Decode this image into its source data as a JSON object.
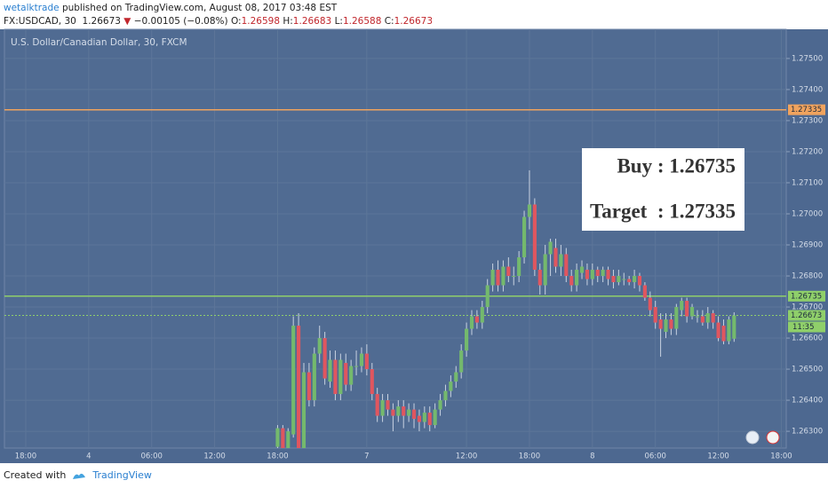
{
  "header": {
    "publisher": "wetalktrade",
    "published": "published on TradingView.com, August 08, 2017 03:48 EST",
    "symbol": "FX:USDCAD, 30",
    "last": "1.26673",
    "arrow": "▼",
    "change": "−0.00105 (−0.08%)",
    "o_label": "O:",
    "o": "1.26598",
    "h_label": "H:",
    "h": "1.26683",
    "l_label": "L:",
    "l": "1.26588",
    "c_label": "C:",
    "c": "1.26673"
  },
  "chart_data": {
    "type": "candlestick",
    "title": "U.S. Dollar/Canadian Dollar, 30, FXCM",
    "categories": [
      null,
      null,
      null,
      null,
      "18:00",
      null,
      null,
      null,
      null,
      null,
      null,
      null,
      null,
      null,
      null,
      null,
      "4",
      null,
      null,
      null,
      null,
      null,
      null,
      null,
      null,
      null,
      null,
      null,
      "06:00",
      null,
      null,
      null,
      null,
      null,
      null,
      null,
      null,
      null,
      null,
      null,
      "12:00",
      null,
      null,
      null,
      null,
      null,
      null,
      null,
      null,
      null,
      null,
      null,
      "18:00",
      null,
      null,
      null,
      null,
      null,
      null,
      null,
      null,
      null,
      null,
      null,
      null,
      null,
      null,
      null,
      null,
      "7",
      null,
      null,
      null,
      null,
      null,
      null,
      null,
      null,
      null,
      null,
      null,
      null,
      null,
      null,
      null,
      null,
      null,
      null,
      "12:00",
      null,
      null,
      null,
      null,
      null,
      null,
      null,
      null,
      null,
      null,
      null,
      "18:00",
      null,
      null,
      null,
      null,
      null,
      null,
      null,
      null,
      null,
      null,
      null,
      "8",
      null,
      null,
      null,
      null,
      null,
      null,
      null,
      null,
      null,
      null,
      null,
      "06:00",
      null,
      null,
      null,
      null,
      null,
      null,
      null,
      null,
      null,
      null,
      null,
      "12:00",
      null,
      null,
      null,
      null,
      null,
      null,
      null,
      null,
      null,
      null,
      null,
      "18:00"
    ],
    "open": [
      null,
      null,
      null,
      null,
      null,
      null,
      null,
      null,
      null,
      null,
      null,
      null,
      null,
      null,
      null,
      null,
      null,
      null,
      null,
      null,
      null,
      null,
      null,
      null,
      null,
      null,
      null,
      null,
      null,
      null,
      null,
      null,
      null,
      null,
      null,
      null,
      null,
      null,
      null,
      null,
      null,
      null,
      null,
      null,
      null,
      null,
      null,
      null,
      null,
      null,
      null,
      null,
      1.2625,
      1.2631,
      1.2624,
      1.2629,
      1.2664,
      1.2624,
      1.2649,
      1.264,
      1.2655,
      1.266,
      1.2646,
      1.2653,
      1.2642,
      1.2652,
      1.2645,
      1.2651,
      1.2651,
      1.2655,
      1.265,
      1.2642,
      1.2635,
      1.264,
      1.2637,
      1.2635,
      1.2638,
      1.2635,
      1.2637,
      1.2635,
      1.2633,
      1.2636,
      1.2632,
      1.2637,
      1.264,
      1.2643,
      1.2646,
      1.2649,
      1.2656,
      1.2663,
      1.2667,
      1.2665,
      1.267,
      1.2677,
      1.2682,
      1.2677,
      1.2683,
      1.268,
      1.268,
      1.2686,
      1.2699,
      1.2703,
      1.2682,
      1.2677,
      1.2687,
      1.2689,
      1.2683,
      1.2687,
      1.268,
      1.2677,
      1.2681,
      1.2682,
      1.2679,
      1.2682,
      1.268,
      1.2682,
      1.268,
      1.2678,
      1.2679,
      1.2679,
      1.2678,
      1.268,
      1.2677,
      1.2673,
      1.267,
      1.2666,
      1.2662,
      1.2666,
      1.2663,
      1.2669,
      1.2672,
      1.2667,
      1.2667,
      1.2667,
      1.2665,
      1.2668,
      1.2665,
      1.2664,
      1.2659,
      1.26598,
      null,
      null,
      null,
      null,
      null,
      null,
      null,
      null,
      null
    ],
    "high": [
      null,
      null,
      null,
      null,
      null,
      null,
      null,
      null,
      null,
      null,
      null,
      null,
      null,
      null,
      null,
      null,
      null,
      null,
      null,
      null,
      null,
      null,
      null,
      null,
      null,
      null,
      null,
      null,
      null,
      null,
      null,
      null,
      null,
      null,
      null,
      null,
      null,
      null,
      null,
      null,
      null,
      null,
      null,
      null,
      null,
      null,
      null,
      null,
      null,
      null,
      null,
      null,
      1.2632,
      1.2632,
      1.2631,
      1.2667,
      1.2668,
      1.2652,
      1.2652,
      1.2657,
      1.2664,
      1.2662,
      1.2656,
      1.2656,
      1.2655,
      1.2655,
      1.2653,
      1.2656,
      1.2657,
      1.2658,
      1.2652,
      1.2644,
      1.2642,
      1.2642,
      1.2639,
      1.264,
      1.264,
      1.2639,
      1.2639,
      1.2637,
      1.2638,
      1.2638,
      1.2639,
      1.2642,
      1.2645,
      1.2648,
      1.2651,
      1.2658,
      1.2665,
      1.2669,
      1.2669,
      1.2672,
      1.2679,
      1.2684,
      1.2685,
      1.2685,
      1.2686,
      1.2683,
      1.2688,
      1.2701,
      1.2714,
      1.2705,
      1.2684,
      1.269,
      1.2692,
      1.2692,
      1.269,
      1.2689,
      1.2682,
      1.2684,
      1.2685,
      1.2684,
      1.2684,
      1.2683,
      1.2683,
      1.2683,
      1.2682,
      1.2682,
      1.2681,
      1.268,
      1.2682,
      1.2681,
      1.2678,
      1.2675,
      1.2672,
      1.2668,
      1.2668,
      1.2668,
      1.2671,
      1.2673,
      1.2673,
      1.2671,
      1.2669,
      1.2669,
      1.267,
      1.2669,
      1.2667,
      1.2666,
      1.2667,
      1.26683,
      null,
      null,
      null,
      null,
      null,
      null,
      null,
      null,
      null
    ],
    "low": [
      null,
      null,
      null,
      null,
      null,
      null,
      null,
      null,
      null,
      null,
      null,
      null,
      null,
      null,
      null,
      null,
      null,
      null,
      null,
      null,
      null,
      null,
      null,
      null,
      null,
      null,
      null,
      null,
      null,
      null,
      null,
      null,
      null,
      null,
      null,
      null,
      null,
      null,
      null,
      null,
      null,
      null,
      null,
      null,
      null,
      null,
      null,
      null,
      null,
      null,
      null,
      null,
      1.2622,
      1.262,
      1.2622,
      1.2628,
      1.2622,
      1.2622,
      1.2638,
      1.2638,
      1.2652,
      1.2645,
      1.2644,
      1.264,
      1.264,
      1.2643,
      1.2643,
      1.2648,
      1.2649,
      1.2648,
      1.264,
      1.2633,
      1.2633,
      1.2635,
      1.263,
      1.2633,
      1.2631,
      1.2633,
      1.2631,
      1.263,
      1.2631,
      1.263,
      1.2631,
      1.2635,
      1.2638,
      1.2641,
      1.2644,
      1.2647,
      1.2654,
      1.2661,
      1.2663,
      1.2663,
      1.2668,
      1.2675,
      1.2675,
      1.2675,
      1.2678,
      1.2677,
      1.2678,
      1.2684,
      1.2695,
      1.268,
      1.2674,
      1.2674,
      1.268,
      1.2681,
      1.268,
      1.2678,
      1.2675,
      1.2675,
      1.2679,
      1.2677,
      1.2677,
      1.2678,
      1.2678,
      1.2677,
      1.2676,
      1.2677,
      1.2677,
      1.2677,
      1.2676,
      1.2675,
      1.2672,
      1.2667,
      1.2663,
      1.2654,
      1.266,
      1.2661,
      1.2661,
      1.2667,
      1.2665,
      1.2666,
      1.2665,
      1.2664,
      1.2663,
      1.2663,
      1.2659,
      1.2658,
      1.2658,
      1.26588,
      null,
      null,
      null,
      null,
      null,
      null,
      null,
      null,
      null
    ],
    "close": [
      null,
      null,
      null,
      null,
      null,
      null,
      null,
      null,
      null,
      null,
      null,
      null,
      null,
      null,
      null,
      null,
      null,
      null,
      null,
      null,
      null,
      null,
      null,
      null,
      null,
      null,
      null,
      null,
      null,
      null,
      null,
      null,
      null,
      null,
      null,
      null,
      null,
      null,
      null,
      null,
      null,
      null,
      null,
      null,
      null,
      null,
      null,
      null,
      null,
      null,
      null,
      null,
      1.2631,
      1.2624,
      1.263,
      1.2664,
      1.2624,
      1.2649,
      1.264,
      1.2655,
      1.266,
      1.2647,
      1.2653,
      1.2642,
      1.2653,
      1.2645,
      1.2651,
      1.2651,
      1.2655,
      1.265,
      1.2642,
      1.2635,
      1.264,
      1.2637,
      1.2635,
      1.2638,
      1.2635,
      1.2637,
      1.2634,
      1.2633,
      1.2636,
      1.2632,
      1.2637,
      1.264,
      1.2643,
      1.2646,
      1.2649,
      1.2656,
      1.2663,
      1.2667,
      1.2665,
      1.267,
      1.2677,
      1.2682,
      1.2677,
      1.2683,
      1.268,
      1.268,
      1.2686,
      1.2699,
      1.2703,
      1.2682,
      1.2677,
      1.2687,
      1.2691,
      1.2683,
      1.2687,
      1.268,
      1.2677,
      1.2682,
      1.2683,
      1.2679,
      1.2682,
      1.268,
      1.2682,
      1.2679,
      1.2678,
      1.268,
      1.2679,
      1.2678,
      1.268,
      1.2677,
      1.2673,
      1.2669,
      1.2665,
      1.2663,
      1.2666,
      1.2663,
      1.267,
      1.2672,
      1.2667,
      1.267,
      1.2667,
      1.2665,
      1.2668,
      1.2665,
      1.266,
      1.2659,
      1.2666,
      1.26673,
      null,
      null,
      null,
      null,
      null,
      null,
      null,
      null,
      null
    ],
    "up_color": "#74b96d",
    "down_color": "#e0565f",
    "ylim": [
      1.26246,
      1.27594
    ],
    "yticks": [
      {
        "value": 1.263,
        "label": "1.26300"
      },
      {
        "value": 1.264,
        "label": "1.26400"
      },
      {
        "value": 1.265,
        "label": "1.26500"
      },
      {
        "value": 1.266,
        "label": "1.26600"
      },
      {
        "value": 1.267,
        "label": "1.26700"
      },
      {
        "value": 1.268,
        "label": "1.26800"
      },
      {
        "value": 1.269,
        "label": "1.26900"
      },
      {
        "value": 1.27,
        "label": "1.27000"
      },
      {
        "value": 1.271,
        "label": "1.27100"
      },
      {
        "value": 1.272,
        "label": "1.27200"
      },
      {
        "value": 1.273,
        "label": "1.27300"
      },
      {
        "value": 1.274,
        "label": "1.27400"
      },
      {
        "value": 1.275,
        "label": "1.27500"
      }
    ],
    "grid": true,
    "price_lines": [
      {
        "value": 1.27335,
        "color": "#f0a35e",
        "style": "solid"
      },
      {
        "value": 1.26735,
        "color": "#8fcf6a",
        "style": "solid"
      },
      {
        "value": 1.26673,
        "color": "#8fcf6a",
        "style": "dotted"
      }
    ],
    "countdown": "11:35",
    "annotations": [
      "Buy : 1.26735",
      "Target  : 1.27335"
    ]
  },
  "footer": {
    "created_with": "Created with",
    "brand": "TradingView"
  }
}
